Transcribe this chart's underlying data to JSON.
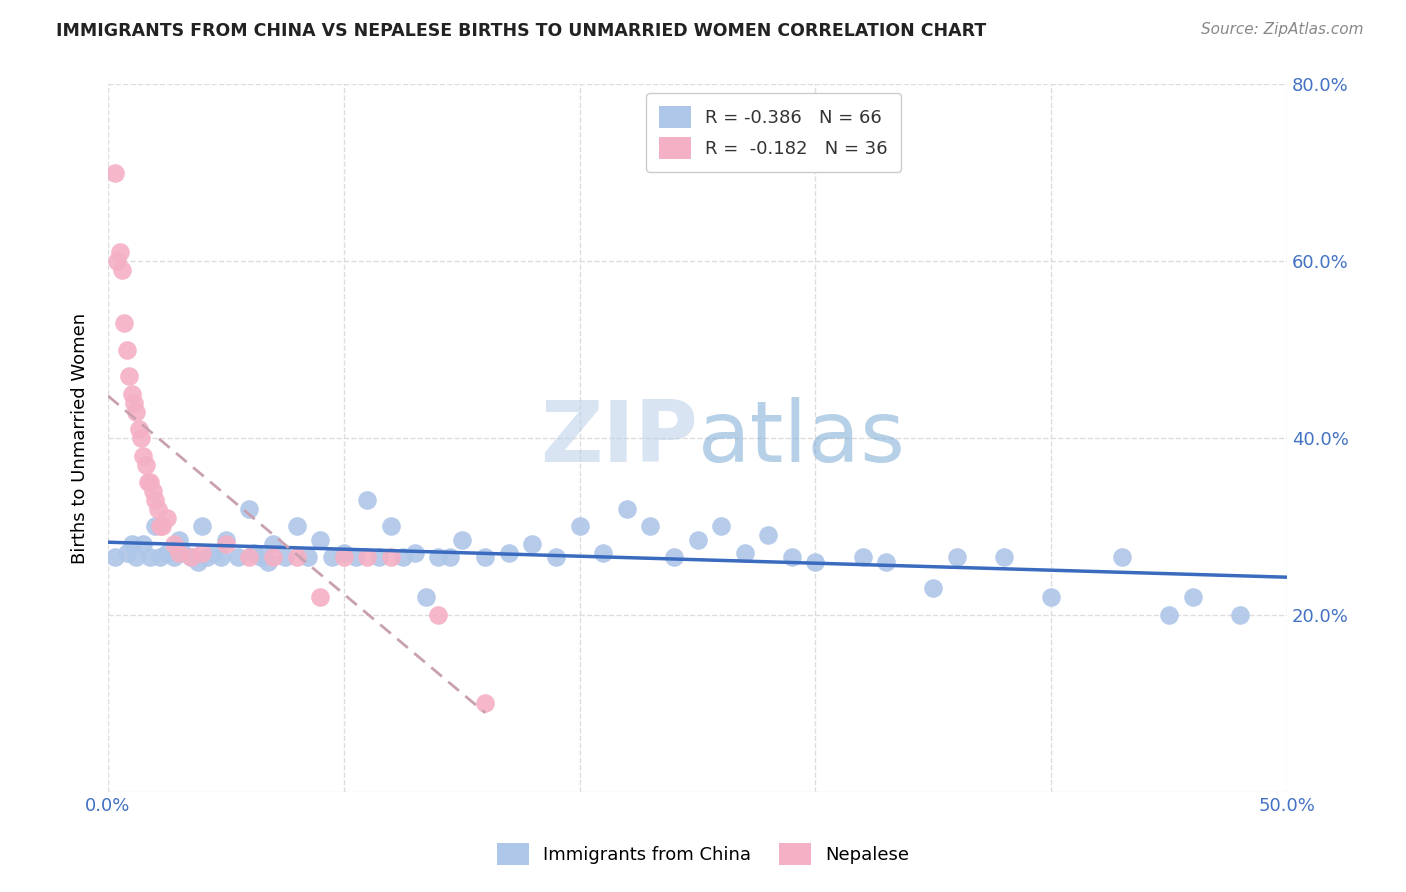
{
  "title": "IMMIGRANTS FROM CHINA VS NEPALESE BIRTHS TO UNMARRIED WOMEN CORRELATION CHART",
  "source": "Source: ZipAtlas.com",
  "ylabel": "Births to Unmarried Women",
  "xlim": [
    0.0,
    0.5
  ],
  "ylim": [
    0.0,
    0.8
  ],
  "xtick_positions": [
    0.0,
    0.1,
    0.2,
    0.3,
    0.4,
    0.5
  ],
  "xtick_labels": [
    "0.0%",
    "",
    "",
    "",
    "",
    "50.0%"
  ],
  "ytick_positions": [
    0.0,
    0.2,
    0.4,
    0.6,
    0.8
  ],
  "ytick_labels_right": [
    "",
    "20.0%",
    "40.0%",
    "60.0%",
    "80.0%"
  ],
  "legend_r_china": "-0.386",
  "legend_n_china": "66",
  "legend_r_nepal": "-0.182",
  "legend_n_nepal": "36",
  "color_china": "#aec6e8",
  "color_nepal": "#f4b0c4",
  "line_color_china": "#3a6bbf",
  "line_color_nepal": "#c8a0b0",
  "watermark_color": "#d0e4f5",
  "china_x": [
    0.003,
    0.008,
    0.01,
    0.012,
    0.015,
    0.018,
    0.02,
    0.022,
    0.025,
    0.028,
    0.03,
    0.032,
    0.035,
    0.038,
    0.04,
    0.042,
    0.045,
    0.048,
    0.05,
    0.055,
    0.06,
    0.062,
    0.065,
    0.068,
    0.07,
    0.075,
    0.08,
    0.085,
    0.09,
    0.095,
    0.1,
    0.105,
    0.11,
    0.115,
    0.12,
    0.125,
    0.13,
    0.135,
    0.14,
    0.145,
    0.15,
    0.16,
    0.17,
    0.18,
    0.19,
    0.2,
    0.21,
    0.22,
    0.23,
    0.24,
    0.25,
    0.26,
    0.27,
    0.28,
    0.29,
    0.3,
    0.32,
    0.33,
    0.35,
    0.36,
    0.38,
    0.4,
    0.43,
    0.45,
    0.46,
    0.48
  ],
  "china_y": [
    0.265,
    0.27,
    0.28,
    0.265,
    0.28,
    0.265,
    0.3,
    0.265,
    0.27,
    0.265,
    0.285,
    0.27,
    0.265,
    0.26,
    0.3,
    0.265,
    0.27,
    0.265,
    0.285,
    0.265,
    0.32,
    0.27,
    0.265,
    0.26,
    0.28,
    0.265,
    0.3,
    0.265,
    0.285,
    0.265,
    0.27,
    0.265,
    0.33,
    0.265,
    0.3,
    0.265,
    0.27,
    0.22,
    0.265,
    0.265,
    0.285,
    0.265,
    0.27,
    0.28,
    0.265,
    0.3,
    0.27,
    0.32,
    0.3,
    0.265,
    0.285,
    0.3,
    0.27,
    0.29,
    0.265,
    0.26,
    0.265,
    0.26,
    0.23,
    0.265,
    0.265,
    0.22,
    0.265,
    0.2,
    0.22,
    0.2
  ],
  "nepal_x": [
    0.003,
    0.004,
    0.005,
    0.006,
    0.007,
    0.008,
    0.009,
    0.01,
    0.011,
    0.012,
    0.013,
    0.014,
    0.015,
    0.016,
    0.017,
    0.018,
    0.019,
    0.02,
    0.021,
    0.022,
    0.023,
    0.025,
    0.028,
    0.03,
    0.035,
    0.04,
    0.05,
    0.06,
    0.07,
    0.08,
    0.09,
    0.1,
    0.11,
    0.12,
    0.14,
    0.16
  ],
  "nepal_y": [
    0.7,
    0.6,
    0.61,
    0.59,
    0.53,
    0.5,
    0.47,
    0.45,
    0.44,
    0.43,
    0.41,
    0.4,
    0.38,
    0.37,
    0.35,
    0.35,
    0.34,
    0.33,
    0.32,
    0.3,
    0.3,
    0.31,
    0.28,
    0.27,
    0.265,
    0.27,
    0.28,
    0.265,
    0.265,
    0.265,
    0.22,
    0.265,
    0.265,
    0.265,
    0.2,
    0.1
  ],
  "background_color": "#ffffff",
  "grid_color": "#dddddd"
}
